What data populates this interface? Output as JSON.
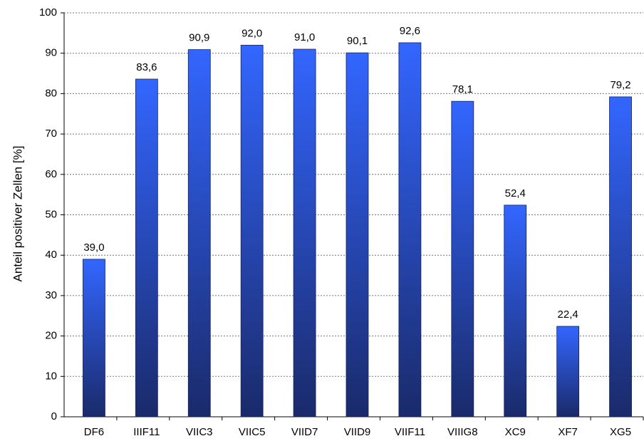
{
  "chart_data": {
    "type": "bar",
    "y_label": "Anteil positiver Zellen [%]",
    "categories": [
      "DF6",
      "IIIF11",
      "VIIC3",
      "VIIC5",
      "VIID7",
      "VIID9",
      "VIIF11",
      "VIIIG8",
      "XC9",
      "XF7",
      "XG5"
    ],
    "values": [
      39.0,
      83.6,
      90.9,
      92.0,
      91.0,
      90.1,
      92.6,
      78.1,
      52.4,
      22.4,
      79.2
    ],
    "value_labels": [
      "39,0",
      "83,6",
      "90,9",
      "92,0",
      "91,0",
      "90,1",
      "92,6",
      "78,1",
      "52,4",
      "22,4",
      "79,2"
    ],
    "color": [
      "#3366ff",
      "#1a2a6a"
    ],
    "ylim": [
      0,
      100
    ],
    "yticks": [
      0,
      10,
      20,
      30,
      40,
      50,
      60,
      70,
      80,
      90,
      100
    ],
    "grid": true
  }
}
